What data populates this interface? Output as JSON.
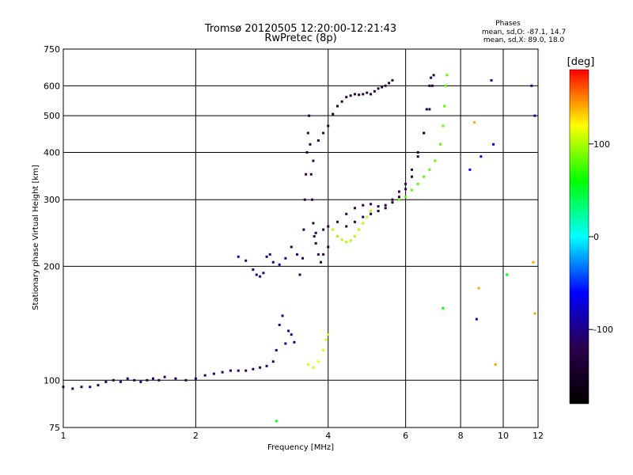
{
  "chart_data": {
    "type": "scatter",
    "title": "Tromsø 20120505 12:20:00-12:21:43",
    "subtitle": "RwPretec (8p)",
    "xlabel": "Frequency [MHz]",
    "ylabel": "Stationary phase Virtual Height [km]",
    "x_scale": "log",
    "y_scale": "log",
    "xlim": [
      1,
      12
    ],
    "ylim": [
      75,
      750
    ],
    "x_ticks": [
      1,
      2,
      4,
      6,
      8,
      10,
      12
    ],
    "y_ticks": [
      75,
      100,
      200,
      300,
      400,
      500,
      600,
      750
    ],
    "grid": true,
    "phases_box": {
      "title": "Phases",
      "line_o": "mean, sd,O: -87.1, 14.7",
      "line_x": "mean, sd,X: 89.0, 18.0"
    },
    "colorbar": {
      "label": "[deg]",
      "range": [
        -180,
        180
      ],
      "ticks": [
        100,
        0,
        -100
      ],
      "colors": [
        "#ff0000",
        "#ffff00",
        "#00ff00",
        "#00ffff",
        "#0000ff",
        "#2a004a",
        "#000000"
      ]
    },
    "series": [
      {
        "phase_deg": -110,
        "points": [
          [
            1.0,
            96
          ],
          [
            1.05,
            95
          ],
          [
            1.1,
            96
          ],
          [
            1.15,
            96
          ],
          [
            1.2,
            97
          ],
          [
            1.25,
            99
          ],
          [
            1.3,
            100
          ],
          [
            1.35,
            99
          ],
          [
            1.4,
            101
          ],
          [
            1.45,
            100
          ],
          [
            1.5,
            99
          ],
          [
            1.55,
            100
          ],
          [
            1.6,
            101
          ],
          [
            1.65,
            100
          ],
          [
            1.7,
            102
          ],
          [
            1.8,
            101
          ],
          [
            1.9,
            100
          ],
          [
            2.0,
            101
          ],
          [
            2.1,
            103
          ],
          [
            2.2,
            104
          ],
          [
            2.3,
            105
          ],
          [
            2.4,
            106
          ],
          [
            2.5,
            106
          ],
          [
            2.6,
            106
          ],
          [
            2.7,
            107
          ],
          [
            2.8,
            108
          ],
          [
            2.9,
            109
          ],
          [
            3.0,
            112
          ]
        ]
      },
      {
        "phase_deg": -95,
        "points": [
          [
            3.05,
            120
          ],
          [
            3.1,
            140
          ],
          [
            3.15,
            148
          ],
          [
            3.2,
            125
          ],
          [
            3.25,
            135
          ],
          [
            3.3,
            132
          ],
          [
            3.35,
            126
          ]
        ]
      },
      {
        "phase_deg": -100,
        "points": [
          [
            2.5,
            212
          ],
          [
            2.6,
            207
          ],
          [
            2.7,
            196
          ],
          [
            2.75,
            190
          ],
          [
            2.8,
            188
          ],
          [
            2.85,
            192
          ],
          [
            2.9,
            212
          ],
          [
            2.95,
            215
          ],
          [
            3.0,
            205
          ],
          [
            3.1,
            202
          ],
          [
            3.2,
            210
          ],
          [
            3.3,
            225
          ],
          [
            3.4,
            215
          ]
        ]
      },
      {
        "phase_deg": -120,
        "points": [
          [
            3.45,
            190
          ],
          [
            3.5,
            210
          ],
          [
            3.52,
            250
          ],
          [
            3.54,
            300
          ],
          [
            3.56,
            350
          ],
          [
            3.58,
            400
          ],
          [
            3.6,
            450
          ],
          [
            3.62,
            500
          ],
          [
            3.64,
            420
          ],
          [
            3.66,
            350
          ],
          [
            3.68,
            300
          ],
          [
            3.7,
            260
          ],
          [
            3.72,
            240
          ],
          [
            3.75,
            230
          ],
          [
            3.8,
            215
          ],
          [
            3.85,
            205
          ]
        ]
      },
      {
        "phase_deg": -125,
        "points": [
          [
            3.7,
            380
          ],
          [
            3.8,
            430
          ],
          [
            3.9,
            450
          ],
          [
            4.0,
            470
          ],
          [
            4.1,
            505
          ],
          [
            4.2,
            530
          ],
          [
            4.3,
            545
          ],
          [
            4.4,
            560
          ],
          [
            4.5,
            565
          ],
          [
            4.6,
            570
          ],
          [
            4.7,
            568
          ],
          [
            4.8,
            570
          ],
          [
            4.9,
            575
          ],
          [
            5.0,
            570
          ],
          [
            5.1,
            580
          ],
          [
            5.2,
            590
          ],
          [
            5.3,
            595
          ],
          [
            5.4,
            600
          ],
          [
            5.5,
            610
          ],
          [
            5.6,
            620
          ]
        ]
      },
      {
        "phase_deg": -120,
        "points": [
          [
            3.75,
            245
          ],
          [
            3.9,
            250
          ],
          [
            4.0,
            255
          ],
          [
            4.2,
            262
          ],
          [
            4.4,
            275
          ],
          [
            4.6,
            285
          ],
          [
            4.8,
            290
          ],
          [
            5.0,
            292
          ],
          [
            5.2,
            288
          ],
          [
            5.4,
            290
          ],
          [
            5.6,
            300
          ],
          [
            5.8,
            315
          ],
          [
            6.0,
            330
          ],
          [
            6.2,
            360
          ],
          [
            6.4,
            400
          ],
          [
            6.6,
            450
          ],
          [
            6.8,
            520
          ],
          [
            6.9,
            600
          ],
          [
            6.95,
            640
          ]
        ]
      },
      {
        "phase_deg": -130,
        "points": [
          [
            3.9,
            215
          ],
          [
            4.0,
            225
          ],
          [
            4.2,
            240
          ],
          [
            4.4,
            255
          ],
          [
            4.6,
            262
          ],
          [
            4.8,
            270
          ],
          [
            5.0,
            275
          ],
          [
            5.2,
            280
          ],
          [
            5.4,
            285
          ],
          [
            5.6,
            295
          ],
          [
            5.8,
            305
          ],
          [
            6.0,
            320
          ],
          [
            6.2,
            345
          ],
          [
            6.4,
            390
          ],
          [
            6.6,
            450
          ],
          [
            6.7,
            520
          ],
          [
            6.8,
            600
          ],
          [
            6.85,
            630
          ]
        ]
      },
      {
        "phase_deg": 100,
        "points": [
          [
            4.1,
            250
          ],
          [
            4.2,
            240
          ],
          [
            4.3,
            235
          ],
          [
            4.4,
            232
          ],
          [
            4.5,
            234
          ],
          [
            4.6,
            240
          ],
          [
            4.7,
            250
          ],
          [
            4.8,
            260
          ],
          [
            4.9,
            270
          ],
          [
            5.0,
            280
          ]
        ]
      },
      {
        "phase_deg": 80,
        "points": [
          [
            5.8,
            300
          ],
          [
            6.0,
            305
          ],
          [
            6.2,
            318
          ],
          [
            6.4,
            330
          ],
          [
            6.6,
            345
          ],
          [
            6.8,
            360
          ],
          [
            7.0,
            380
          ],
          [
            7.2,
            420
          ],
          [
            7.3,
            470
          ],
          [
            7.35,
            530
          ],
          [
            7.4,
            600
          ],
          [
            7.45,
            640
          ]
        ]
      },
      {
        "phase_deg": 110,
        "points": [
          [
            3.6,
            110
          ],
          [
            3.7,
            108
          ],
          [
            3.8,
            112
          ],
          [
            3.9,
            120
          ],
          [
            3.95,
            128
          ],
          [
            4.0,
            132
          ]
        ]
      },
      {
        "phase_deg": -90,
        "points": [
          [
            8.7,
            145
          ],
          [
            9.4,
            620
          ],
          [
            11.6,
            600
          ],
          [
            11.8,
            500
          ]
        ]
      },
      {
        "phase_deg": 60,
        "points": [
          [
            3.05,
            78
          ],
          [
            7.3,
            155
          ],
          [
            10.2,
            190
          ]
        ]
      },
      {
        "phase_deg": 140,
        "points": [
          [
            8.6,
            480
          ],
          [
            8.8,
            175
          ],
          [
            9.6,
            110
          ],
          [
            11.7,
            205
          ],
          [
            11.8,
            150
          ]
        ]
      },
      {
        "phase_deg": -60,
        "points": [
          [
            8.9,
            390
          ],
          [
            9.5,
            420
          ],
          [
            8.4,
            360
          ]
        ]
      }
    ]
  }
}
